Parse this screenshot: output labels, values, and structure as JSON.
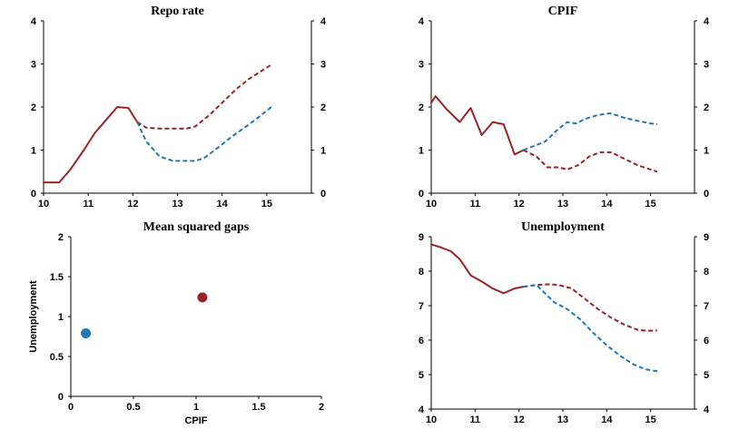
{
  "colors": {
    "actual": "#9b2226",
    "alt_blue": "#1f77b4",
    "alt_red": "#9b2226",
    "axis": "#000000",
    "grid": "#d9d9d9"
  },
  "chart_data": [
    {
      "type": "line",
      "title": "Repo rate",
      "xlim": [
        10,
        16
      ],
      "ylim": [
        0,
        4
      ],
      "x_ticks": [
        "10",
        "11",
        "12",
        "13",
        "14",
        "15"
      ],
      "y_ticks": [
        "0",
        "1",
        "2",
        "3",
        "4"
      ],
      "y_ticks_right": [
        "0",
        "1",
        "2",
        "3",
        "4"
      ],
      "series": [
        {
          "style": "solid",
          "color": "actual",
          "x": [
            10.0,
            10.35,
            10.6,
            10.9,
            11.15,
            11.4,
            11.65,
            11.9,
            12.1
          ],
          "y": [
            0.25,
            0.25,
            0.55,
            1.0,
            1.4,
            1.7,
            2.0,
            1.98,
            1.65
          ]
        },
        {
          "style": "dashed",
          "color": "alt_red",
          "x": [
            12.1,
            12.3,
            12.6,
            12.9,
            13.2,
            13.4,
            13.7,
            14.0,
            14.3,
            14.6,
            14.9,
            15.1
          ],
          "y": [
            1.65,
            1.52,
            1.5,
            1.5,
            1.5,
            1.55,
            1.8,
            2.1,
            2.4,
            2.65,
            2.85,
            2.98
          ]
        },
        {
          "style": "dashed",
          "color": "alt_blue",
          "x": [
            12.1,
            12.3,
            12.6,
            12.9,
            13.2,
            13.4,
            13.6,
            13.9,
            14.2,
            14.5,
            14.8,
            15.1
          ],
          "y": [
            1.65,
            1.2,
            0.85,
            0.75,
            0.75,
            0.75,
            0.82,
            1.05,
            1.3,
            1.52,
            1.75,
            2.0
          ]
        }
      ]
    },
    {
      "type": "line",
      "title": "CPIF",
      "xlim": [
        10,
        16
      ],
      "ylim": [
        0,
        4
      ],
      "x_ticks": [
        "10",
        "11",
        "12",
        "13",
        "14",
        "15"
      ],
      "y_ticks": [
        "0",
        "1",
        "2",
        "3",
        "4"
      ],
      "y_ticks_right": [
        "0",
        "1",
        "2",
        "3",
        "4"
      ],
      "series": [
        {
          "style": "solid",
          "color": "actual",
          "x": [
            10.0,
            10.1,
            10.35,
            10.65,
            10.9,
            11.15,
            11.4,
            11.65,
            11.9,
            12.1
          ],
          "y": [
            2.1,
            2.25,
            1.95,
            1.65,
            1.98,
            1.35,
            1.65,
            1.6,
            0.9,
            1.0
          ]
        },
        {
          "style": "dashed",
          "color": "alt_red",
          "x": [
            12.1,
            12.4,
            12.65,
            12.9,
            13.1,
            13.35,
            13.6,
            13.85,
            14.1,
            14.4,
            14.7,
            15.0,
            15.15
          ],
          "y": [
            1.0,
            0.85,
            0.6,
            0.6,
            0.55,
            0.65,
            0.85,
            0.95,
            0.95,
            0.8,
            0.65,
            0.55,
            0.5
          ]
        },
        {
          "style": "dashed",
          "color": "alt_blue",
          "x": [
            12.1,
            12.35,
            12.6,
            12.85,
            13.1,
            13.3,
            13.5,
            13.75,
            14.0,
            14.1,
            14.4,
            14.7,
            15.0,
            15.15
          ],
          "y": [
            1.0,
            1.1,
            1.2,
            1.45,
            1.65,
            1.62,
            1.72,
            1.8,
            1.85,
            1.85,
            1.75,
            1.68,
            1.62,
            1.6
          ]
        }
      ]
    },
    {
      "type": "scatter",
      "title": "Mean squared gaps",
      "xlabel": "CPIF",
      "ylabel": "Unemployment",
      "xlim": [
        0,
        2
      ],
      "ylim": [
        0,
        2
      ],
      "x_ticks": [
        "0",
        "0.5",
        "1",
        "1.5",
        "2"
      ],
      "y_ticks": [
        "0",
        "0.5",
        "1",
        "1.5",
        "2"
      ],
      "points": [
        {
          "x": 0.12,
          "y": 0.79,
          "color": "alt_blue"
        },
        {
          "x": 1.05,
          "y": 1.24,
          "color": "alt_red"
        }
      ]
    },
    {
      "type": "line",
      "title": "Unemployment",
      "xlim": [
        10,
        16
      ],
      "ylim": [
        4,
        9
      ],
      "x_ticks": [
        "10",
        "11",
        "12",
        "13",
        "14",
        "15"
      ],
      "y_ticks": [
        "4",
        "5",
        "6",
        "7",
        "8",
        "9"
      ],
      "y_ticks_right": [
        "4",
        "5",
        "6",
        "7",
        "8",
        "9"
      ],
      "series": [
        {
          "style": "solid",
          "color": "actual",
          "x": [
            10.0,
            10.2,
            10.45,
            10.65,
            10.9,
            11.15,
            11.4,
            11.65,
            11.9,
            12.1
          ],
          "y": [
            8.78,
            8.7,
            8.58,
            8.35,
            7.88,
            7.7,
            7.5,
            7.36,
            7.5,
            7.55
          ]
        },
        {
          "style": "dashed",
          "color": "alt_red",
          "x": [
            12.1,
            12.4,
            12.7,
            12.9,
            13.2,
            13.5,
            13.8,
            14.1,
            14.4,
            14.7,
            14.9,
            15.15
          ],
          "y": [
            7.55,
            7.6,
            7.62,
            7.6,
            7.5,
            7.2,
            6.9,
            6.65,
            6.45,
            6.3,
            6.27,
            6.28
          ]
        },
        {
          "style": "dashed",
          "color": "alt_blue",
          "x": [
            12.1,
            12.4,
            12.6,
            12.8,
            13.1,
            13.4,
            13.7,
            14.0,
            14.3,
            14.6,
            14.9,
            15.15
          ],
          "y": [
            7.55,
            7.6,
            7.35,
            7.1,
            6.9,
            6.6,
            6.2,
            5.85,
            5.55,
            5.3,
            5.15,
            5.1
          ]
        }
      ]
    }
  ]
}
